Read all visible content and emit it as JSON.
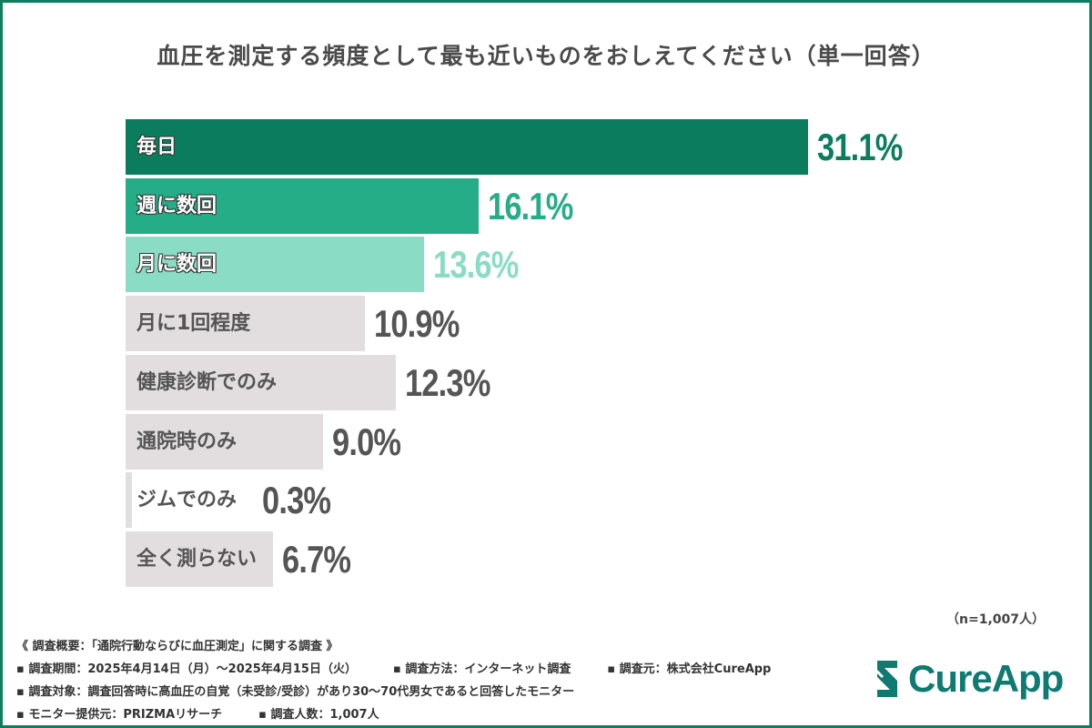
{
  "chart_data": {
    "type": "bar",
    "orientation": "horizontal",
    "title": "血圧を測定する頻度として最も近いものをおしえてください（単一回答）",
    "categories": [
      "毎日",
      "週に数回",
      "月に数回",
      "月に1回程度",
      "健康診断でのみ",
      "通院時のみ",
      "ジムでのみ",
      "全く測らない"
    ],
    "values": [
      31.1,
      16.1,
      13.6,
      10.9,
      12.3,
      9.0,
      0.3,
      6.7
    ],
    "value_labels": [
      "31.1%",
      "16.1%",
      "13.6%",
      "10.9%",
      "12.3%",
      "9.0%",
      "0.3%",
      "6.7%"
    ],
    "unit": "%",
    "colors": [
      "#0b7d5e",
      "#25ad88",
      "#8adcc5",
      "#e2dee0",
      "#e2dee0",
      "#e2dee0",
      "#e2dee0",
      "#e2dee0"
    ],
    "value_colors": [
      "#0b7d5e",
      "#25ad88",
      "#8adcc5",
      "#555555",
      "#555555",
      "#555555",
      "#555555",
      "#555555"
    ],
    "grid": false,
    "legend": "none"
  },
  "sample_size": "（n=1,007人）",
  "notes": {
    "overview": "《 調査概要：「通院行動ならびに血圧測定」に関する調査 》",
    "period": "▪ 調査期間：2025年4月14日（月）～2025年4月15日（火）",
    "method": "▪ 調査方法：インターネット調査",
    "source": "▪ 調査元：株式会社CureApp",
    "target": "▪ 調査対象：調査回答時に高血圧の自覚（未受診/受診）があり30～70代男女であると回答したモニター",
    "provider": "▪ モニター提供元：PRIZMAリサーチ",
    "count": "▪ 調査人数：1,007人"
  },
  "logo": {
    "text": "CureApp",
    "color": "#0f7a72"
  }
}
